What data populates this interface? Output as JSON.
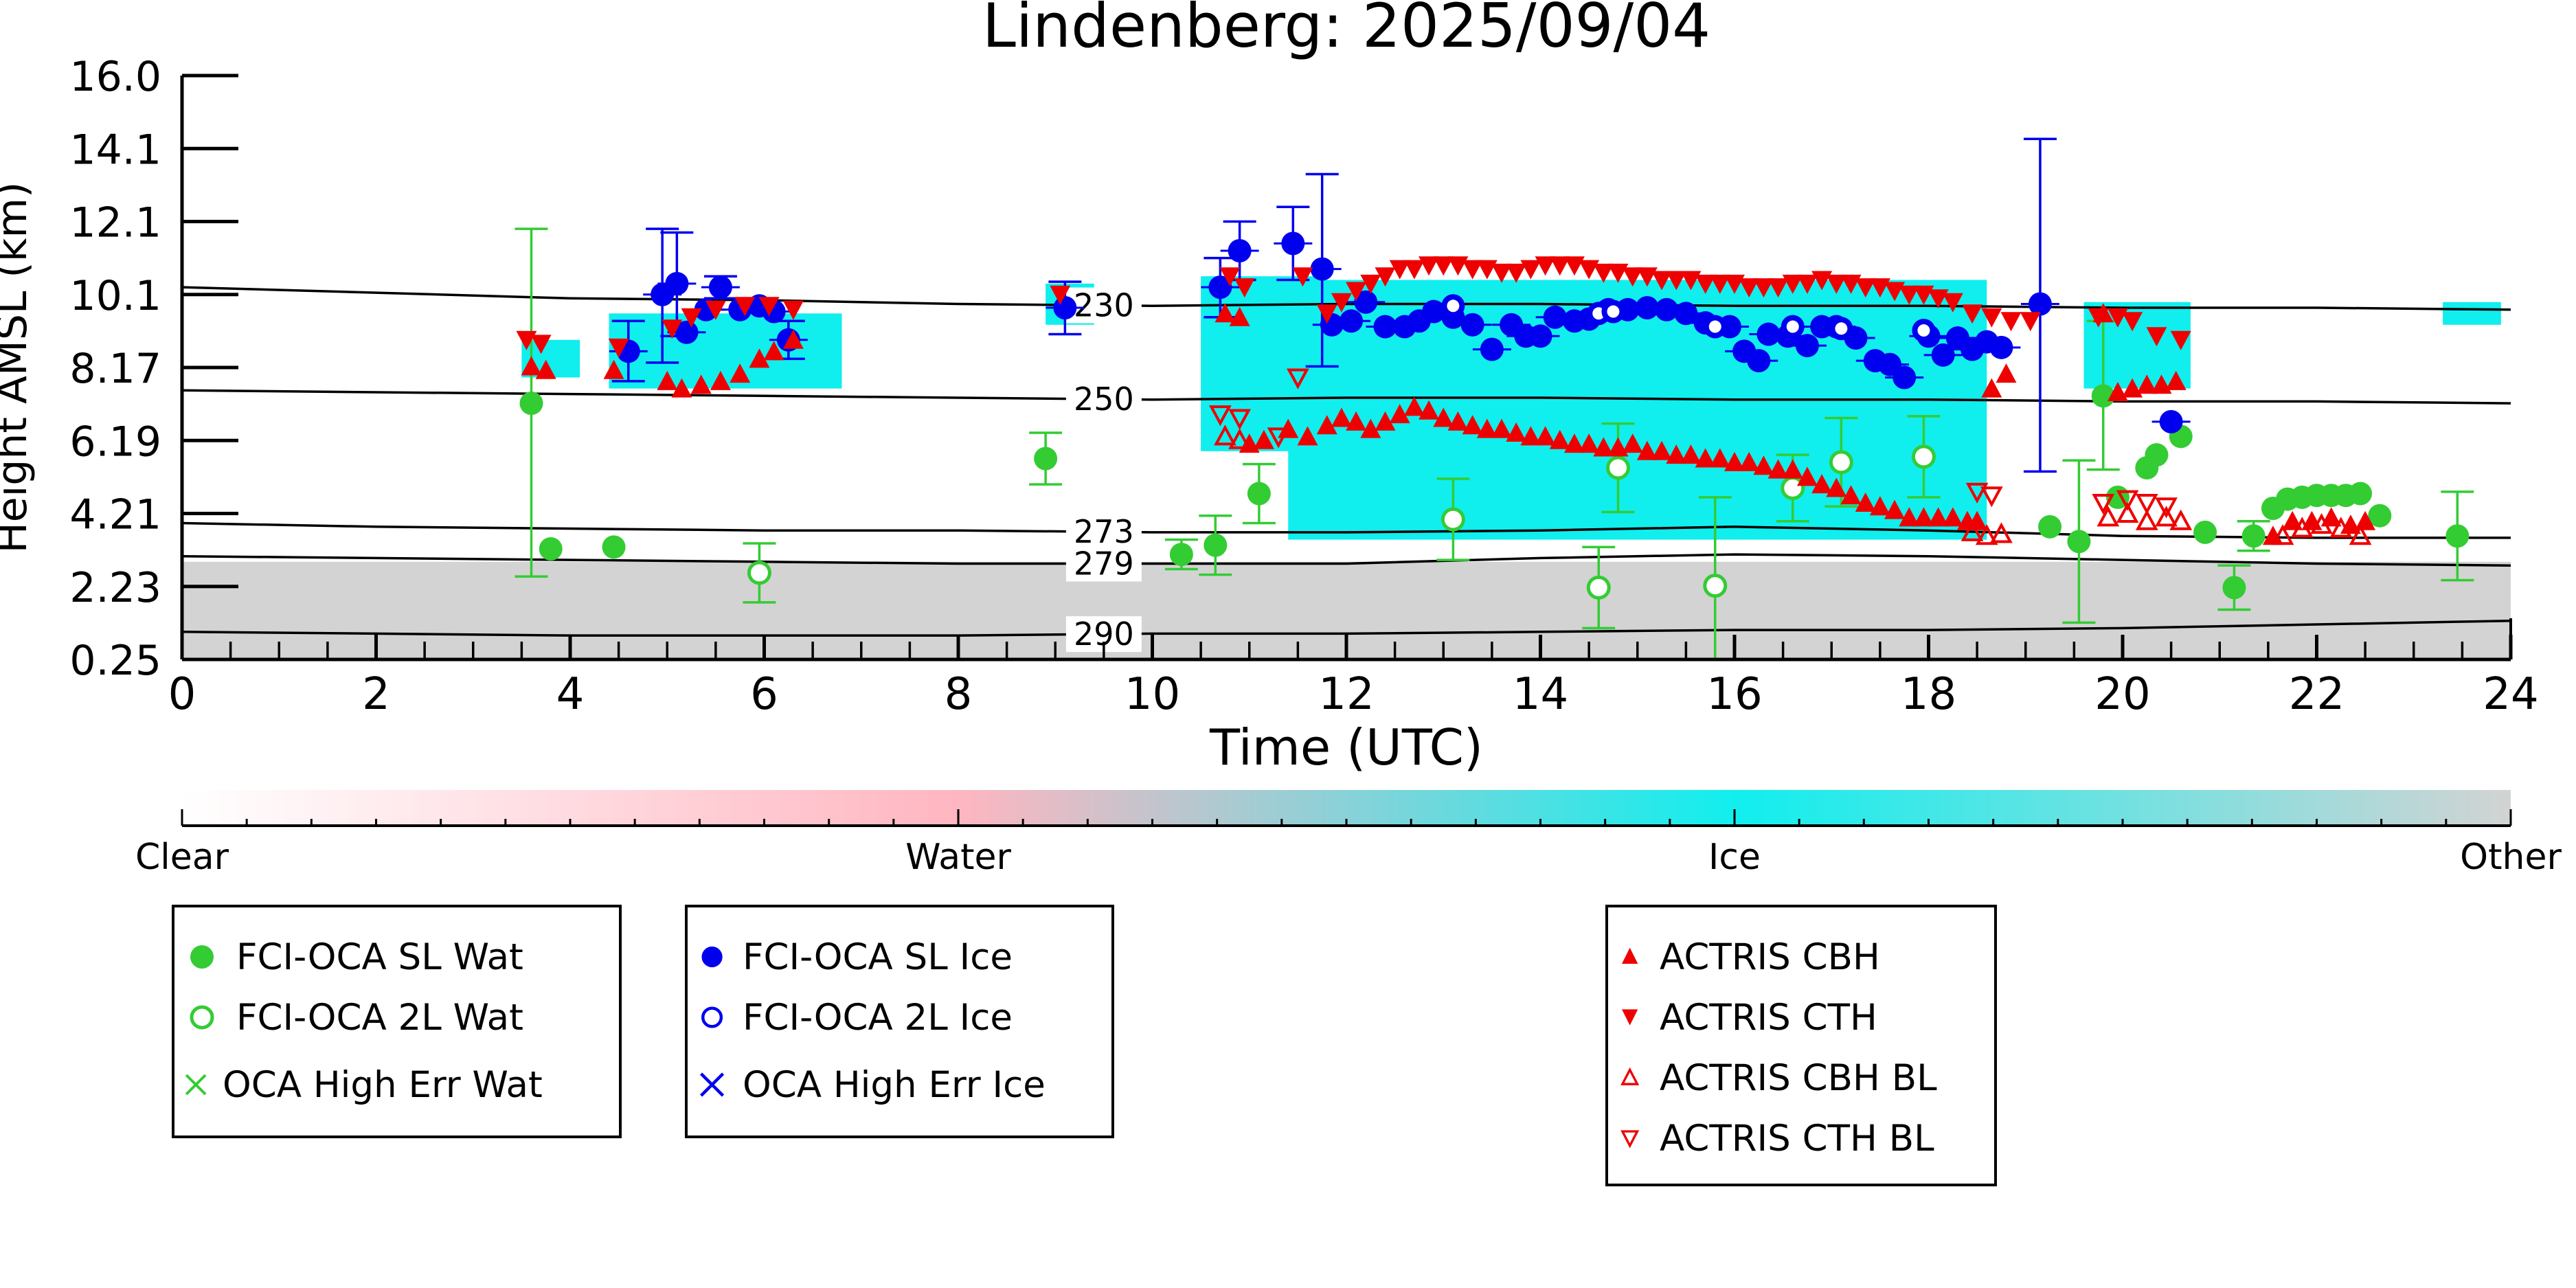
{
  "chart_data": {
    "type": "scatter",
    "title": "Lindenberg: 2025/09/04",
    "xlabel": "Time (UTC)",
    "ylabel": "Height AMSL (km)",
    "xlim": [
      0,
      24
    ],
    "ylim": [
      0.25,
      16.0
    ],
    "xticks": [
      "0",
      "2",
      "4",
      "6",
      "8",
      "10",
      "12",
      "14",
      "16",
      "18",
      "20",
      "22",
      "24"
    ],
    "yticks": [
      "0.25",
      "2.23",
      "4.21",
      "6.19",
      "8.17",
      "10.1",
      "12.1",
      "14.1",
      "16.0"
    ],
    "ytick_values": [
      0.25,
      2.23,
      4.21,
      6.19,
      8.17,
      10.1,
      12.1,
      14.1,
      16.0
    ],
    "colors": {
      "wat": "#33cc33",
      "ice": "#0000ee",
      "actris": "#ee0000",
      "cyan": "#11eeee",
      "pink": "#ffb6c1",
      "grey": "#d3d3d3"
    },
    "background_regions": [
      {
        "class": "Other",
        "x0": 0,
        "x1": 24,
        "y0": 0.25,
        "y1": 2.9
      },
      {
        "class": "Ice",
        "x0": 3.5,
        "x1": 4.1,
        "y0": 7.9,
        "y1": 8.9
      },
      {
        "class": "Ice",
        "x0": 4.4,
        "x1": 6.8,
        "y0": 7.6,
        "y1": 9.6
      },
      {
        "class": "Ice",
        "x0": 8.9,
        "x1": 9.4,
        "y0": 9.3,
        "y1": 10.4
      },
      {
        "class": "Ice",
        "x0": 10.5,
        "x1": 11.8,
        "y0": 5.9,
        "y1": 10.6
      },
      {
        "class": "Ice",
        "x0": 11.4,
        "x1": 18.6,
        "y0": 3.5,
        "y1": 10.5
      },
      {
        "class": "Ice",
        "x0": 19.6,
        "x1": 20.7,
        "y0": 7.6,
        "y1": 9.9
      },
      {
        "class": "Ice",
        "x0": 23.3,
        "x1": 23.9,
        "y0": 9.3,
        "y1": 9.9
      }
    ],
    "contours": [
      {
        "label": "230",
        "label_x": 9.5,
        "x": [
          0,
          2,
          4,
          6,
          8,
          10,
          12,
          14,
          16,
          18,
          20,
          22,
          24
        ],
        "y": [
          10.3,
          10.15,
          10.0,
          9.95,
          9.85,
          9.8,
          9.85,
          9.85,
          9.8,
          9.8,
          9.75,
          9.75,
          9.7
        ]
      },
      {
        "label": "250",
        "label_x": 9.5,
        "x": [
          0,
          2,
          4,
          6,
          8,
          10,
          12,
          14,
          16,
          18,
          20,
          22,
          24
        ],
        "y": [
          7.55,
          7.5,
          7.45,
          7.4,
          7.35,
          7.3,
          7.35,
          7.35,
          7.3,
          7.3,
          7.25,
          7.25,
          7.2
        ]
      },
      {
        "label": "273",
        "label_x": 9.5,
        "x": [
          0,
          2,
          4,
          6,
          8,
          10,
          12,
          14,
          16,
          18,
          20,
          22,
          24
        ],
        "y": [
          3.95,
          3.85,
          3.8,
          3.75,
          3.75,
          3.7,
          3.7,
          3.75,
          3.85,
          3.75,
          3.6,
          3.55,
          3.55
        ]
      },
      {
        "label": "279",
        "label_x": 9.5,
        "x": [
          0,
          2,
          4,
          6,
          8,
          10,
          12,
          14,
          16,
          18,
          20,
          22,
          24
        ],
        "y": [
          3.05,
          3.0,
          2.95,
          2.9,
          2.85,
          2.85,
          2.85,
          3.0,
          3.1,
          3.05,
          2.95,
          2.85,
          2.8
        ]
      },
      {
        "label": "290",
        "label_x": 9.5,
        "x": [
          0,
          2,
          4,
          6,
          8,
          10,
          12,
          14,
          16,
          18,
          20,
          22,
          24
        ],
        "y": [
          1.0,
          0.95,
          0.9,
          0.9,
          0.9,
          0.95,
          0.95,
          1.0,
          1.05,
          1.05,
          1.1,
          1.2,
          1.3
        ]
      }
    ],
    "series": [
      {
        "name": "FCI-OCA SL Wat",
        "marker": "filled-circle",
        "x": [
          3.6,
          3.8,
          4.45,
          8.9,
          10.3,
          10.65,
          11.1,
          19.25,
          19.55,
          19.8,
          19.95,
          20.25,
          20.35,
          20.6,
          20.85,
          21.15,
          21.35,
          21.55,
          21.7,
          21.85,
          22.0,
          22.15,
          22.3,
          22.45,
          22.65,
          23.45
        ],
        "y": [
          7.2,
          3.25,
          3.3,
          5.7,
          3.1,
          3.35,
          4.75,
          3.85,
          3.45,
          7.4,
          4.65,
          5.45,
          5.8,
          6.3,
          3.7,
          2.2,
          3.6,
          4.35,
          4.6,
          4.65,
          4.7,
          4.7,
          4.7,
          4.75,
          4.15,
          3.6
        ],
        "err": [
          4.7,
          0,
          0,
          0.7,
          0.4,
          0.8,
          0.8,
          0,
          2.2,
          2.0,
          0,
          0,
          0,
          0,
          0,
          0.6,
          0.4,
          0,
          0,
          0,
          0,
          0,
          0,
          0,
          0,
          1.2
        ]
      },
      {
        "name": "FCI-OCA 2L Wat",
        "marker": "open-circle",
        "x": [
          5.95,
          13.1,
          14.6,
          14.8,
          15.8,
          16.6,
          17.1,
          17.95
        ],
        "y": [
          2.6,
          4.05,
          2.2,
          5.45,
          2.25,
          4.9,
          5.6,
          5.75
        ],
        "err": [
          0.8,
          1.1,
          1.1,
          1.2,
          2.4,
          0.9,
          1.2,
          1.1
        ]
      },
      {
        "name": "OCA High Err Wat",
        "marker": "x",
        "x": [],
        "y": []
      },
      {
        "name": "FCI-OCA SL Ice",
        "marker": "filled-circle",
        "x": [
          4.6,
          4.95,
          5.1,
          5.2,
          5.4,
          5.55,
          5.75,
          5.95,
          6.1,
          6.25,
          9.1,
          10.7,
          10.9,
          11.45,
          11.75,
          11.85,
          12.05,
          12.2,
          12.4,
          12.6,
          12.75,
          12.9,
          13.1,
          13.3,
          13.5,
          13.7,
          13.85,
          14.0,
          14.15,
          14.35,
          14.5,
          14.7,
          14.9,
          15.1,
          15.3,
          15.5,
          15.7,
          15.95,
          16.1,
          16.25,
          16.35,
          16.55,
          16.75,
          16.9,
          17.05,
          17.25,
          17.45,
          17.6,
          17.75,
          18.0,
          18.15,
          18.3,
          18.45,
          18.6,
          18.75,
          19.15,
          20.5
        ],
        "y": [
          8.6,
          10.1,
          10.4,
          9.1,
          9.7,
          10.3,
          9.7,
          9.8,
          9.65,
          8.9,
          9.75,
          10.3,
          11.3,
          11.5,
          10.8,
          9.3,
          9.4,
          9.9,
          9.25,
          9.25,
          9.4,
          9.65,
          9.5,
          9.3,
          8.65,
          9.3,
          9.0,
          9.0,
          9.5,
          9.4,
          9.45,
          9.7,
          9.7,
          9.75,
          9.7,
          9.6,
          9.35,
          9.25,
          8.6,
          8.35,
          9.05,
          9.0,
          8.75,
          9.25,
          9.25,
          8.95,
          8.35,
          8.25,
          7.9,
          9.0,
          8.5,
          8.95,
          8.65,
          8.85,
          8.7,
          9.85,
          6.7
        ],
        "err": [
          0.8,
          1.8,
          1.4,
          0,
          0,
          0.3,
          0,
          0,
          0,
          0.5,
          0.7,
          0.8,
          0.8,
          1.0,
          2.6,
          0,
          0,
          0,
          0,
          0,
          0,
          0,
          0,
          0,
          0,
          0,
          0,
          0,
          0,
          0,
          0,
          0,
          0,
          0,
          0,
          0,
          0,
          0,
          0,
          0,
          0,
          0,
          0,
          0,
          0,
          0,
          0,
          0,
          0,
          0,
          0,
          0,
          0,
          0,
          0,
          4.5,
          0
        ]
      },
      {
        "name": "FCI-OCA 2L Ice",
        "marker": "open-circle",
        "x": [
          13.1,
          14.6,
          14.75,
          15.8,
          16.6,
          17.1,
          17.95
        ],
        "y": [
          9.8,
          9.6,
          9.65,
          9.25,
          9.25,
          9.2,
          9.15
        ],
        "err": [
          0,
          0,
          0,
          0,
          0,
          0,
          0
        ]
      },
      {
        "name": "OCA High Err Ice",
        "marker": "x",
        "x": [],
        "y": []
      },
      {
        "name": "ACTRIS CBH",
        "marker": "triangle-up-filled",
        "x": [
          3.6,
          3.75,
          4.45,
          5.0,
          5.15,
          5.35,
          5.55,
          5.75,
          5.95,
          6.1,
          6.3,
          10.75,
          10.9,
          11.0,
          11.15,
          11.4,
          11.6,
          11.8,
          11.95,
          12.1,
          12.25,
          12.4,
          12.55,
          12.7,
          12.85,
          13.0,
          13.15,
          13.3,
          13.45,
          13.6,
          13.75,
          13.9,
          14.05,
          14.2,
          14.35,
          14.5,
          14.65,
          14.8,
          14.95,
          15.1,
          15.25,
          15.4,
          15.55,
          15.7,
          15.85,
          16.0,
          16.15,
          16.3,
          16.45,
          16.6,
          16.75,
          16.9,
          17.05,
          17.2,
          17.35,
          17.5,
          17.65,
          17.8,
          17.95,
          18.1,
          18.25,
          18.4,
          18.5,
          18.65,
          18.8,
          19.8,
          19.95,
          20.1,
          20.25,
          20.4,
          20.55,
          21.55,
          21.75,
          21.95,
          22.15,
          22.35,
          22.5
        ],
        "y": [
          8.2,
          8.1,
          8.1,
          7.8,
          7.6,
          7.7,
          7.8,
          8.0,
          8.4,
          8.6,
          8.9,
          9.6,
          9.5,
          6.1,
          6.2,
          6.5,
          6.3,
          6.6,
          6.8,
          6.7,
          6.5,
          6.7,
          6.9,
          7.1,
          7.0,
          6.8,
          6.7,
          6.6,
          6.5,
          6.5,
          6.4,
          6.3,
          6.3,
          6.2,
          6.1,
          6.1,
          6.0,
          6.0,
          6.1,
          5.9,
          5.9,
          5.8,
          5.8,
          5.7,
          5.7,
          5.6,
          5.6,
          5.5,
          5.4,
          5.4,
          5.2,
          5.0,
          4.9,
          4.7,
          4.5,
          4.4,
          4.3,
          4.1,
          4.1,
          4.1,
          4.1,
          4.0,
          4.0,
          7.6,
          8.0,
          9.6,
          7.5,
          7.6,
          7.7,
          7.7,
          7.8,
          3.6,
          4.0,
          4.0,
          4.1,
          3.9,
          4.0
        ]
      },
      {
        "name": "ACTRIS CTH",
        "marker": "triangle-down-filled",
        "x": [
          3.55,
          3.7,
          4.5,
          5.05,
          5.25,
          5.5,
          5.8,
          6.05,
          6.3,
          9.05,
          10.8,
          10.95,
          11.55,
          11.8,
          11.95,
          12.1,
          12.25,
          12.4,
          12.55,
          12.7,
          12.85,
          13.0,
          13.15,
          13.3,
          13.45,
          13.6,
          13.75,
          13.9,
          14.05,
          14.2,
          14.35,
          14.5,
          14.65,
          14.8,
          14.95,
          15.1,
          15.25,
          15.4,
          15.55,
          15.7,
          15.85,
          16.0,
          16.15,
          16.3,
          16.45,
          16.6,
          16.75,
          16.9,
          17.05,
          17.2,
          17.35,
          17.5,
          17.65,
          17.8,
          17.95,
          18.1,
          18.25,
          18.45,
          18.65,
          18.85,
          19.05,
          19.75,
          19.95,
          20.1,
          20.35,
          20.6
        ],
        "y": [
          8.9,
          8.8,
          8.7,
          9.2,
          9.5,
          9.7,
          9.8,
          9.8,
          9.7,
          10.1,
          10.6,
          10.3,
          10.6,
          9.6,
          9.9,
          10.2,
          10.4,
          10.6,
          10.8,
          10.8,
          10.9,
          10.9,
          10.9,
          10.8,
          10.8,
          10.7,
          10.7,
          10.8,
          10.9,
          10.9,
          10.9,
          10.8,
          10.7,
          10.7,
          10.6,
          10.6,
          10.5,
          10.5,
          10.5,
          10.4,
          10.4,
          10.4,
          10.3,
          10.3,
          10.3,
          10.4,
          10.4,
          10.5,
          10.4,
          10.4,
          10.3,
          10.3,
          10.2,
          10.1,
          10.1,
          10.0,
          9.9,
          9.6,
          9.5,
          9.4,
          9.4,
          9.5,
          9.5,
          9.4,
          9.0,
          8.9
        ]
      },
      {
        "name": "ACTRIS CBH BL",
        "marker": "triangle-up-open",
        "x": [
          10.75,
          10.9,
          18.45,
          18.6,
          18.75,
          19.85,
          20.05,
          20.25,
          20.45,
          20.6,
          21.65,
          21.85,
          22.05,
          22.25,
          22.45
        ],
        "y": [
          6.3,
          6.2,
          3.7,
          3.6,
          3.65,
          4.1,
          4.2,
          4.0,
          4.1,
          4.0,
          3.6,
          3.8,
          3.9,
          3.8,
          3.6
        ]
      },
      {
        "name": "ACTRIS CTH BL",
        "marker": "triangle-down-open",
        "x": [
          10.7,
          10.9,
          11.3,
          11.5,
          18.5,
          18.65,
          19.8,
          20.05,
          20.25,
          20.45
        ],
        "y": [
          6.9,
          6.8,
          6.3,
          7.9,
          4.8,
          4.7,
          4.5,
          4.6,
          4.5,
          4.4
        ]
      }
    ],
    "colorbar": {
      "labels": [
        "Clear",
        "Water",
        "Ice",
        "Other"
      ],
      "stops": [
        "#ffffff",
        "#ffb6c1",
        "#11eeee",
        "#d3d3d3"
      ]
    },
    "legend_placement": "below"
  }
}
